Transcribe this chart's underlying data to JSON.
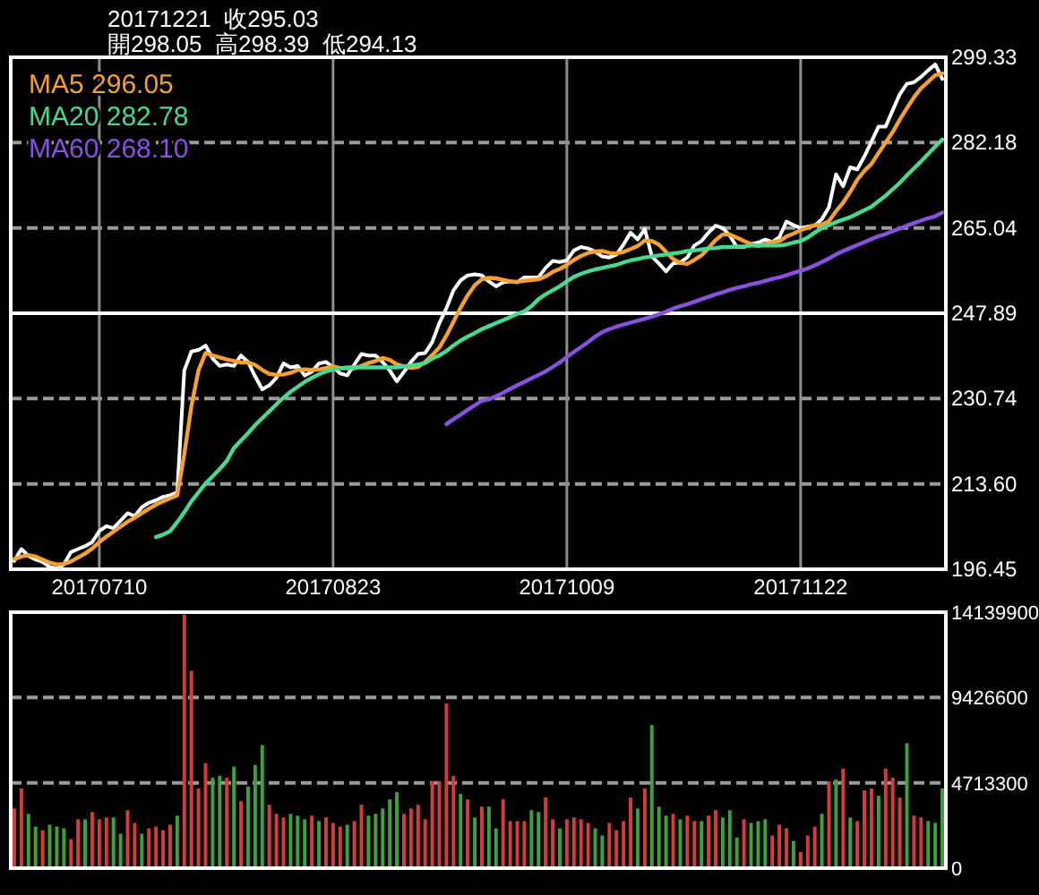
{
  "chart_data": [
    {
      "type": "line",
      "title": "20171221  收295.03",
      "subtitle": "開298.05  高298.39  低294.13",
      "categories": [
        null,
        null,
        null,
        null,
        null,
        null,
        null,
        null,
        null,
        null,
        null,
        null,
        "20170710",
        null,
        null,
        null,
        null,
        null,
        null,
        null,
        null,
        null,
        null,
        null,
        null,
        null,
        null,
        null,
        null,
        null,
        null,
        null,
        null,
        null,
        null,
        null,
        null,
        null,
        null,
        null,
        null,
        null,
        null,
        null,
        null,
        "20170823",
        null,
        null,
        null,
        null,
        null,
        null,
        null,
        null,
        null,
        null,
        null,
        null,
        null,
        null,
        null,
        null,
        null,
        null,
        null,
        null,
        null,
        null,
        null,
        null,
        null,
        null,
        null,
        null,
        null,
        null,
        null,
        null,
        "20171009",
        null,
        null,
        null,
        null,
        null,
        null,
        null,
        null,
        null,
        null,
        null,
        null,
        null,
        null,
        null,
        null,
        null,
        null,
        null,
        null,
        null,
        null,
        null,
        null,
        null,
        null,
        null,
        null,
        null,
        null,
        null,
        null,
        "20171122",
        null,
        null,
        null,
        null,
        null,
        null,
        null,
        null,
        null,
        null,
        null,
        null,
        null,
        null,
        null,
        null,
        null,
        null,
        null,
        null
      ],
      "series": [
        {
          "color": "#ffffff",
          "values": [
            198.1,
            200.5,
            199.1,
            198.4,
            197.9,
            196.9,
            196.6,
            197.4,
            199.9,
            200.5,
            201.1,
            201.9,
            204.1,
            205.1,
            204.7,
            206.2,
            207.7,
            207.1,
            208.9,
            209.8,
            210.3,
            211.0,
            211.3,
            211.9,
            236.4,
            240.2,
            240.5,
            241.4,
            238.8,
            237.3,
            237.6,
            237.3,
            239.4,
            238.1,
            235.2,
            232.6,
            233.4,
            234.9,
            237.8,
            237.0,
            237.3,
            235.4,
            236.1,
            237.8,
            238.1,
            237.0,
            235.8,
            235.4,
            237.6,
            239.7,
            239.4,
            239.4,
            238.1,
            236.4,
            234.2,
            236.1,
            238.1,
            239.7,
            239.9,
            242.1,
            245.9,
            248.9,
            252.5,
            254.5,
            255.5,
            255.7,
            255.5,
            254.3,
            253.3,
            254.1,
            254.3,
            254.1,
            255.1,
            255.1,
            255.1,
            257.0,
            258.4,
            258.2,
            258.5,
            260.5,
            261.2,
            260.9,
            260.3,
            259.3,
            259.1,
            259.7,
            261.7,
            264.1,
            262.7,
            264.8,
            259.3,
            257.9,
            256.3,
            257.9,
            258.1,
            259.1,
            261.5,
            262.4,
            264.1,
            265.5,
            265.0,
            263.5,
            261.2,
            261.2,
            261.8,
            262.1,
            262.7,
            262.2,
            263.2,
            266.3,
            265.6,
            265.0,
            265.3,
            265.5,
            266.8,
            269.2,
            275.8,
            273.4,
            277.2,
            276.8,
            279.4,
            282.4,
            285.4,
            285.4,
            288.7,
            291.9,
            294.0,
            294.3,
            295.4,
            296.7,
            297.9,
            295.0
          ]
        },
        {
          "name": "MA5 296.05",
          "color": "#f5a030",
          "values": [
            198.5,
            199.0,
            199.3,
            199.0,
            198.4,
            197.8,
            197.4,
            197.5,
            198.0,
            198.8,
            199.6,
            200.6,
            201.9,
            203.0,
            204.0,
            205.0,
            206.0,
            206.8,
            207.7,
            208.6,
            209.4,
            210.1,
            210.7,
            211.3,
            219.6,
            229.2,
            236.4,
            239.9,
            239.4,
            239.0,
            238.6,
            238.3,
            238.0,
            238.0,
            237.5,
            236.5,
            235.7,
            235.5,
            235.6,
            235.9,
            236.5,
            236.6,
            236.5,
            236.6,
            236.9,
            237.2,
            236.9,
            236.8,
            236.8,
            237.3,
            237.9,
            238.3,
            238.9,
            238.5,
            237.6,
            237.2,
            236.9,
            237.1,
            238.1,
            239.5,
            241.0,
            243.4,
            246.2,
            249.0,
            251.5,
            253.5,
            254.7,
            255.0,
            254.9,
            254.6,
            254.3,
            254.2,
            254.4,
            254.6,
            254.7,
            255.3,
            256.2,
            256.8,
            257.6,
            258.6,
            259.4,
            260.0,
            260.3,
            260.4,
            260.0,
            259.9,
            260.2,
            260.8,
            261.4,
            262.5,
            262.4,
            261.7,
            260.2,
            258.8,
            258.0,
            257.8,
            258.6,
            259.5,
            261.0,
            262.6,
            263.7,
            263.7,
            263.1,
            262.4,
            261.8,
            261.4,
            261.8,
            262.2,
            262.4,
            263.3,
            263.9,
            264.6,
            265.1,
            265.6,
            265.7,
            266.4,
            268.4,
            270.1,
            272.3,
            274.7,
            276.5,
            277.9,
            280.1,
            282.2,
            284.3,
            286.8,
            289.1,
            291.3,
            293.1,
            294.4,
            295.7,
            296.1
          ]
        },
        {
          "name": "MA20 282.78",
          "color": "#48d890",
          "values": [
            null,
            null,
            null,
            null,
            null,
            null,
            null,
            null,
            null,
            null,
            null,
            null,
            null,
            null,
            null,
            null,
            null,
            null,
            null,
            null,
            202.9,
            203.4,
            204.1,
            205.9,
            207.9,
            210.1,
            211.9,
            213.7,
            215.1,
            216.6,
            218.2,
            220.8,
            222.3,
            223.8,
            225.4,
            226.8,
            228.2,
            229.6,
            230.9,
            232.1,
            233.1,
            234.1,
            234.9,
            235.6,
            236.2,
            236.6,
            236.8,
            237.0,
            237.0,
            237.0,
            237.0,
            237.0,
            237.0,
            237.0,
            237.0,
            237.2,
            237.4,
            237.6,
            237.9,
            238.8,
            239.4,
            240.3,
            241.4,
            242.4,
            243.2,
            243.9,
            244.7,
            245.3,
            245.9,
            246.5,
            247.1,
            247.8,
            248.3,
            249.3,
            250.7,
            251.7,
            252.5,
            253.3,
            254.3,
            255.2,
            255.8,
            256.3,
            256.7,
            257.0,
            257.3,
            257.6,
            258.1,
            258.5,
            258.8,
            259.1,
            259.3,
            259.5,
            259.7,
            259.9,
            260.1,
            260.4,
            260.5,
            260.7,
            260.9,
            261.0,
            261.2,
            261.2,
            261.3,
            261.3,
            261.5,
            261.5,
            261.5,
            261.5,
            261.5,
            261.7,
            262.1,
            262.4,
            263.1,
            264.1,
            265.0,
            265.6,
            266.2,
            266.7,
            267.2,
            267.9,
            268.6,
            269.3,
            270.4,
            271.5,
            272.8,
            274.1,
            275.6,
            277.0,
            278.4,
            279.9,
            281.4,
            282.8
          ]
        },
        {
          "name": "MA60 268.10",
          "color": "#8a50e0",
          "values": [
            null,
            null,
            null,
            null,
            null,
            null,
            null,
            null,
            null,
            null,
            null,
            null,
            null,
            null,
            null,
            null,
            null,
            null,
            null,
            null,
            null,
            null,
            null,
            null,
            null,
            null,
            null,
            null,
            null,
            null,
            null,
            null,
            null,
            null,
            null,
            null,
            null,
            null,
            null,
            null,
            null,
            null,
            null,
            null,
            null,
            null,
            null,
            null,
            null,
            null,
            null,
            null,
            null,
            null,
            null,
            null,
            null,
            null,
            null,
            null,
            null,
            225.6,
            226.6,
            227.5,
            228.5,
            229.4,
            230.3,
            230.6,
            231.2,
            231.9,
            232.7,
            233.4,
            234.1,
            234.8,
            235.5,
            236.2,
            237.1,
            238.0,
            239.1,
            240.1,
            241.1,
            242.1,
            243.2,
            244.1,
            244.7,
            245.2,
            245.6,
            246.0,
            246.4,
            246.8,
            247.2,
            247.7,
            248.2,
            248.8,
            249.3,
            249.7,
            250.2,
            250.7,
            251.2,
            251.7,
            252.1,
            252.6,
            253.0,
            253.3,
            253.7,
            254.0,
            254.4,
            254.8,
            255.1,
            255.5,
            256.0,
            256.4,
            256.9,
            257.5,
            258.2,
            258.9,
            259.7,
            260.4,
            261.0,
            261.6,
            262.2,
            262.8,
            263.4,
            263.8,
            264.4,
            264.9,
            265.5,
            266.0,
            266.5,
            267.0,
            267.4,
            268.1
          ]
        }
      ],
      "ylim": [
        196.45,
        299.33
      ],
      "yticks": [
        196.45,
        {
          "value": 213.6,
          "label": "213.60"
        },
        230.74,
        247.89,
        265.04,
        282.18,
        299.33
      ],
      "ref_lines": [
        {
          "axis": "y",
          "value": 247.89,
          "color": "#ffffff",
          "line_style": "solid"
        }
      ],
      "grid": true,
      "legend": "top left",
      "line_style": "solid",
      "marker": "none"
    },
    {
      "type": "bar",
      "categories": [
        null,
        null,
        null,
        null,
        null,
        null,
        null,
        null,
        null,
        null,
        null,
        null,
        null,
        null,
        null,
        null,
        null,
        null,
        null,
        null,
        null,
        null,
        null,
        null,
        null,
        null,
        null,
        null,
        null,
        null,
        null,
        null,
        null,
        null,
        null,
        null,
        null,
        null,
        null,
        null,
        null,
        null,
        null,
        null,
        null,
        null,
        null,
        null,
        null,
        null,
        null,
        null,
        null,
        null,
        null,
        null,
        null,
        null,
        null,
        null,
        null,
        null,
        null,
        null,
        null,
        null,
        null,
        null,
        null,
        null,
        null,
        null,
        null,
        null,
        null,
        null,
        null,
        null,
        null,
        null,
        null,
        null,
        null,
        null,
        null,
        null,
        null,
        null,
        null,
        null,
        null,
        null,
        null,
        null,
        null,
        null,
        null,
        null,
        null,
        null,
        null,
        null,
        null,
        null,
        null,
        null,
        null,
        null,
        null,
        null,
        null,
        null,
        null,
        null,
        null,
        null,
        null,
        null,
        null,
        null,
        null,
        null,
        null,
        null,
        null,
        null,
        null,
        null,
        null,
        null,
        null,
        null
      ],
      "values": [
        3300000,
        4400000,
        3000000,
        2300000,
        2100000,
        2400000,
        2300000,
        2200000,
        1600000,
        2700000,
        2700000,
        3100000,
        2700000,
        2800000,
        2800000,
        1900000,
        3200000,
        2500000,
        1900000,
        2200000,
        2300000,
        2100000,
        2400000,
        2900000,
        14000000,
        10900000,
        4400000,
        5800000,
        5000000,
        5100000,
        5000000,
        5600000,
        3700000,
        4500000,
        5700000,
        6800000,
        3500000,
        3000000,
        2800000,
        3000000,
        2900000,
        2700000,
        2900000,
        2600000,
        2800000,
        2500000,
        2300000,
        2400000,
        2600000,
        3500000,
        2900000,
        3000000,
        3300000,
        3800000,
        4200000,
        3000000,
        3300000,
        3500000,
        2700000,
        4800000,
        4800000,
        9100000,
        5100000,
        4100000,
        3800000,
        2800000,
        3400000,
        3400000,
        2200000,
        3800000,
        2600000,
        2600000,
        2600000,
        3200000,
        3100000,
        3900000,
        2700000,
        2200000,
        2700000,
        2800000,
        2700000,
        2500000,
        2200000,
        1800000,
        2500000,
        2100000,
        2600000,
        3900000,
        3300000,
        4400000,
        7900000,
        3400000,
        2900000,
        3000000,
        2700000,
        2900000,
        2600000,
        2600000,
        2900000,
        3200000,
        2800000,
        3200000,
        1700000,
        2700000,
        2500000,
        2600000,
        2700000,
        1800000,
        2400000,
        2200000,
        1500000,
        900000,
        1800000,
        2300000,
        3000000,
        4800000,
        4900000,
        5500000,
        2800000,
        2600000,
        4300000,
        4400000,
        4000000,
        5500000,
        5000000,
        3900000,
        6900000,
        2900000,
        2800000,
        2600000,
        2500000,
        4400000
      ],
      "colors": [
        "#d23c3c",
        "#d23c3c",
        "#3ca03c",
        "#3ca03c",
        "#d23c3c",
        "#3ca03c",
        "#3ca03c",
        "#3ca03c",
        "#d23c3c",
        "#d23c3c",
        "#3ca03c",
        "#d23c3c",
        "#d23c3c",
        "#d23c3c",
        "#3ca03c",
        "#3ca03c",
        "#d23c3c",
        "#d23c3c",
        "#3ca03c",
        "#d23c3c",
        "#d23c3c",
        "#d23c3c",
        "#d23c3c",
        "#3ca03c",
        "#d23c3c",
        "#d23c3c",
        "#d23c3c",
        "#d23c3c",
        "#3ca03c",
        "#3ca03c",
        "#d23c3c",
        "#3ca03c",
        "#d23c3c",
        "#3ca03c",
        "#3ca03c",
        "#3ca03c",
        "#d23c3c",
        "#d23c3c",
        "#d23c3c",
        "#3ca03c",
        "#3ca03c",
        "#3ca03c",
        "#d23c3c",
        "#3ca03c",
        "#d23c3c",
        "#d23c3c",
        "#d23c3c",
        "#3ca03c",
        "#d23c3c",
        "#d23c3c",
        "#3ca03c",
        "#3ca03c",
        "#3ca03c",
        "#3ca03c",
        "#3ca03c",
        "#d23c3c",
        "#d23c3c",
        "#d23c3c",
        "#d23c3c",
        "#d23c3c",
        "#d23c3c",
        "#d23c3c",
        "#d23c3c",
        "#3ca03c",
        "#d23c3c",
        "#3ca03c",
        "#d23c3c",
        "#3ca03c",
        "#3ca03c",
        "#d23c3c",
        "#d23c3c",
        "#d23c3c",
        "#d23c3c",
        "#3ca03c",
        "#3ca03c",
        "#d23c3c",
        "#d23c3c",
        "#3ca03c",
        "#d23c3c",
        "#d23c3c",
        "#d23c3c",
        "#d23c3c",
        "#3ca03c",
        "#3ca03c",
        "#d23c3c",
        "#d23c3c",
        "#d23c3c",
        "#d23c3c",
        "#3ca03c",
        "#d23c3c",
        "#3ca03c",
        "#3ca03c",
        "#3ca03c",
        "#d23c3c",
        "#3ca03c",
        "#d23c3c",
        "#d23c3c",
        "#3ca03c",
        "#d23c3c",
        "#d23c3c",
        "#3ca03c",
        "#3ca03c",
        "#3ca03c",
        "#d23c3c",
        "#3ca03c",
        "#3ca03c",
        "#3ca03c",
        "#d23c3c",
        "#d23c3c",
        "#d23c3c",
        "#3ca03c",
        "#d23c3c",
        "#d23c3c",
        "#d23c3c",
        "#3ca03c",
        "#d23c3c",
        "#3ca03c",
        "#d23c3c",
        "#3ca03c",
        "#d23c3c",
        "#d23c3c",
        "#d23c3c",
        "#3ca03c",
        "#d23c3c",
        "#d23c3c",
        "#d23c3c",
        "#3ca03c",
        "#d23c3c",
        "#d23c3c",
        "#3ca03c",
        "#3ca03c",
        "#3ca03c"
      ],
      "ylim": [
        0,
        14139900
      ],
      "yticks": [
        0,
        4713300,
        9426600,
        14139900
      ],
      "grid": "y",
      "tick_labels": "y"
    }
  ]
}
